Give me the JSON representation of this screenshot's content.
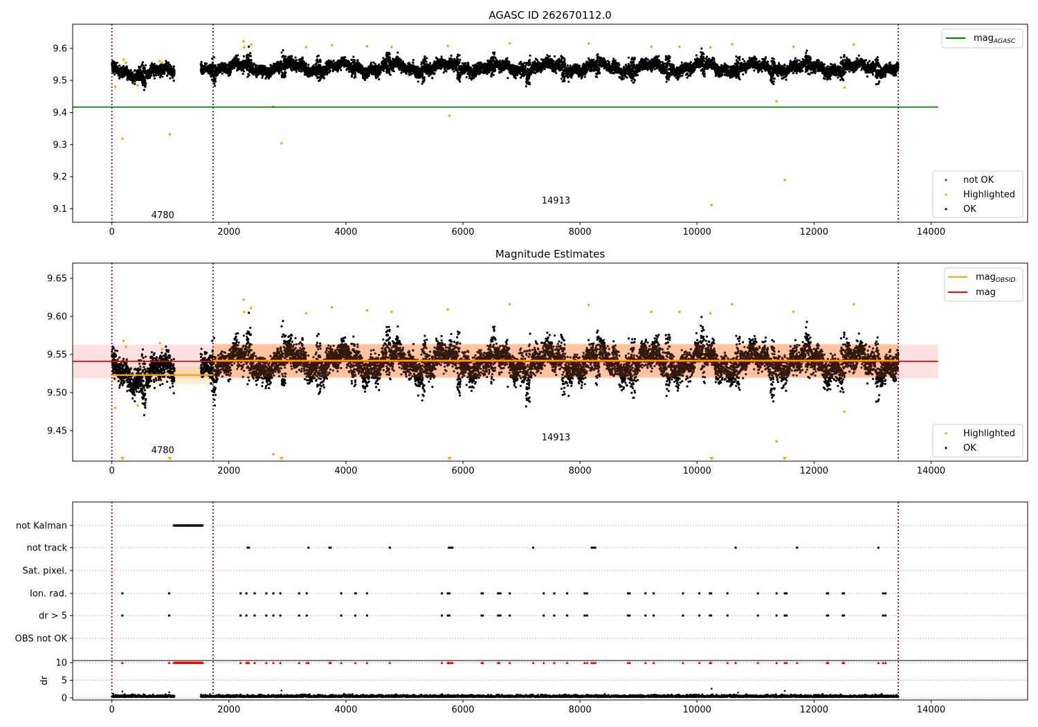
{
  "chart_data": [
    {
      "type": "scatter",
      "title": "AGASC ID 262670112.0",
      "xlim": [
        -670,
        15650
      ],
      "ylim": [
        9.058,
        9.675
      ],
      "xticks": [
        "0",
        "2000",
        "4000",
        "6000",
        "8000",
        "10000",
        "12000",
        "14000"
      ],
      "yticks": [
        "9.1",
        "9.2",
        "9.3",
        "9.4",
        "9.5",
        "9.6"
      ],
      "obsid_boundaries": [
        0,
        1730,
        13440
      ],
      "obsid_labels": [
        {
          "text": "4780",
          "x": 870,
          "y": 9.08
        },
        {
          "text": "14913",
          "x": 7590,
          "y": 9.125
        }
      ],
      "reference_lines": [
        {
          "name": "mag_AGASC",
          "y": 9.417,
          "x_range": [
            -670,
            14120
          ],
          "color": "#008000"
        }
      ],
      "series": [
        {
          "name": "OK",
          "color": "#000000",
          "segments": [
            [
              0,
              1070,
              9.525
            ],
            [
              1520,
              13440,
              9.54
            ]
          ]
        },
        {
          "name": "Highlighted",
          "color": "#ffa500",
          "points": [
            [
              60,
              9.48
            ],
            [
              180,
              9.318
            ],
            [
              200,
              9.565
            ],
            [
              240,
              9.555
            ],
            [
              440,
              9.485
            ],
            [
              820,
              9.56
            ],
            [
              860,
              9.555
            ],
            [
              990,
              9.332
            ],
            [
              2250,
              9.622
            ],
            [
              2260,
              9.603
            ],
            [
              2380,
              9.612
            ],
            [
              2760,
              9.418
            ],
            [
              2900,
              9.304
            ],
            [
              3320,
              9.604
            ],
            [
              3760,
              9.61
            ],
            [
              4360,
              9.606
            ],
            [
              4780,
              9.604
            ],
            [
              5740,
              9.607
            ],
            [
              5770,
              9.39
            ],
            [
              6800,
              9.615
            ],
            [
              8150,
              9.615
            ],
            [
              9220,
              9.605
            ],
            [
              9700,
              9.605
            ],
            [
              10250,
              9.112
            ],
            [
              10600,
              9.613
            ],
            [
              10230,
              9.603
            ],
            [
              11360,
              9.435
            ],
            [
              11500,
              9.19
            ],
            [
              11650,
              9.605
            ],
            [
              12520,
              9.478
            ],
            [
              12680,
              9.612
            ]
          ]
        },
        {
          "name": "not OK",
          "color": "#ff0000",
          "points": []
        }
      ],
      "legends": [
        [
          "mag_AGASC"
        ],
        [
          "not OK",
          "Highlighted",
          "OK"
        ]
      ]
    },
    {
      "type": "scatter",
      "title": "Magnitude Estimates",
      "xlim": [
        -670,
        15650
      ],
      "ylim": [
        9.41,
        9.67
      ],
      "xticks": [
        "0",
        "2000",
        "4000",
        "6000",
        "8000",
        "10000",
        "12000",
        "14000"
      ],
      "yticks": [
        "9.45",
        "9.50",
        "9.55",
        "9.60",
        "9.65"
      ],
      "obsid_boundaries": [
        0,
        1730,
        13440
      ],
      "obsid_labels": [
        {
          "text": "4780",
          "x": 870,
          "y": 9.424
        },
        {
          "text": "14913",
          "x": 7590,
          "y": 9.441
        }
      ],
      "reference_lines": [
        {
          "name": "mag",
          "y": 9.541,
          "x_range": [
            -670,
            14120
          ],
          "color": "#ff0000",
          "band": [
            9.519,
            9.563
          ]
        },
        {
          "name": "mag_OBSID 4780",
          "y": 9.523,
          "x_range": [
            0,
            1730
          ],
          "color": "#ffa500",
          "band": [
            9.511,
            9.535
          ]
        },
        {
          "name": "mag_OBSID 14913",
          "y": 9.542,
          "x_range": [
            1730,
            13440
          ],
          "color": "#ffa500",
          "band": [
            9.52,
            9.564
          ]
        }
      ],
      "series": [
        {
          "name": "OK",
          "color": "#000000",
          "segments": [
            [
              0,
              1070,
              9.525
            ],
            [
              1520,
              13440,
              9.54
            ]
          ]
        },
        {
          "name": "Highlighted",
          "color": "#ffa500",
          "points": [
            [
              60,
              9.48
            ],
            [
              200,
              9.568
            ],
            [
              240,
              9.56
            ],
            [
              440,
              9.483
            ],
            [
              820,
              9.565
            ],
            [
              860,
              9.557
            ],
            [
              2250,
              9.622
            ],
            [
              2260,
              9.606
            ],
            [
              2380,
              9.611
            ],
            [
              2760,
              9.419
            ],
            [
              3320,
              9.604
            ],
            [
              3760,
              9.612
            ],
            [
              4360,
              9.608
            ],
            [
              4780,
              9.606
            ],
            [
              5740,
              9.609
            ],
            [
              6800,
              9.616
            ],
            [
              8150,
              9.615
            ],
            [
              9220,
              9.606
            ],
            [
              9700,
              9.606
            ],
            [
              10230,
              9.604
            ],
            [
              10600,
              9.616
            ],
            [
              11360,
              9.436
            ],
            [
              11650,
              9.606
            ],
            [
              12520,
              9.475
            ],
            [
              12680,
              9.616
            ]
          ],
          "below_range_markers": [
            180,
            990,
            2900,
            5770,
            10250,
            11500
          ]
        }
      ],
      "legends": [
        [
          "mag_OBSID",
          "mag"
        ],
        [
          "Highlighted",
          "OK"
        ]
      ]
    },
    {
      "type": "scatter",
      "title": "",
      "xlim": [
        -670,
        15650
      ],
      "flags_ylabels": [
        "not Kalman",
        "not track",
        "Sat. pixel.",
        "Ion. rad.",
        "dr > 5",
        "OBS not OK"
      ],
      "flags": {
        "not Kalman": [
          [
            1060,
            1560
          ]
        ],
        "not track": [
          2320,
          2340,
          3360,
          3720,
          3740,
          4750,
          5760,
          5790,
          5820,
          7200,
          8200,
          8230,
          8260,
          10660,
          11710,
          13100
        ],
        "Sat. pixel.": [],
        "Ion. rad.": [
          180,
          980,
          2200,
          2300,
          2440,
          2640,
          2760,
          2880,
          3200,
          3330,
          3920,
          4160,
          4170,
          4360,
          5640,
          5740,
          5770,
          6320,
          6340,
          6600,
          6620,
          6640,
          6800,
          7380,
          7560,
          7780,
          8080,
          8120,
          8820,
          8850,
          9120,
          9260,
          9760,
          10040,
          10220,
          10240,
          10520,
          11040,
          11360,
          11500,
          11530,
          12220,
          12240,
          12490,
          12510,
          13180,
          13220
        ],
        "dr > 5": [
          180,
          980,
          2200,
          2300,
          2440,
          2640,
          2760,
          2880,
          3200,
          3330,
          3920,
          4160,
          4360,
          5640,
          5740,
          5770,
          6320,
          6340,
          6600,
          6620,
          6640,
          6800,
          7380,
          7560,
          7780,
          8080,
          8120,
          8820,
          8850,
          9120,
          9260,
          9760,
          10040,
          10220,
          10240,
          10520,
          11040,
          11360,
          11500,
          11530,
          12220,
          12240,
          12490,
          12510,
          13180,
          13220
        ],
        "OBS not OK": []
      },
      "xticks": [
        "0",
        "2000",
        "4000",
        "6000",
        "8000",
        "10000",
        "12000",
        "14000"
      ],
      "dr": {
        "ylabel": "dr",
        "yticks": [
          "0",
          "5",
          "10"
        ],
        "ylim": [
          -0.6,
          10.6
        ],
        "clipped_at_10": [
          180,
          980,
          [
            1060,
            1560
          ],
          2200,
          2300,
          2320,
          2340,
          2440,
          2640,
          2760,
          2880,
          3200,
          3330,
          3360,
          3720,
          3740,
          3920,
          4160,
          4360,
          4750,
          5640,
          5740,
          5760,
          5790,
          5820,
          6320,
          6340,
          6600,
          6620,
          6800,
          7200,
          7380,
          7560,
          7780,
          8080,
          8120,
          8200,
          8230,
          8260,
          8820,
          8850,
          9120,
          9260,
          9760,
          10040,
          10220,
          10240,
          10520,
          10660,
          11040,
          11360,
          11500,
          11530,
          11710,
          12220,
          12240,
          12490,
          12510,
          13100,
          13180,
          13220
        ],
        "occasional": [
          [
            180,
            1.8
          ],
          [
            980,
            1.6
          ],
          [
            2900,
            2.1
          ],
          [
            10250,
            2.6
          ],
          [
            11500,
            2.0
          ],
          [
            10700,
            1.5
          ]
        ],
        "baseline": 0.25
      }
    }
  ]
}
